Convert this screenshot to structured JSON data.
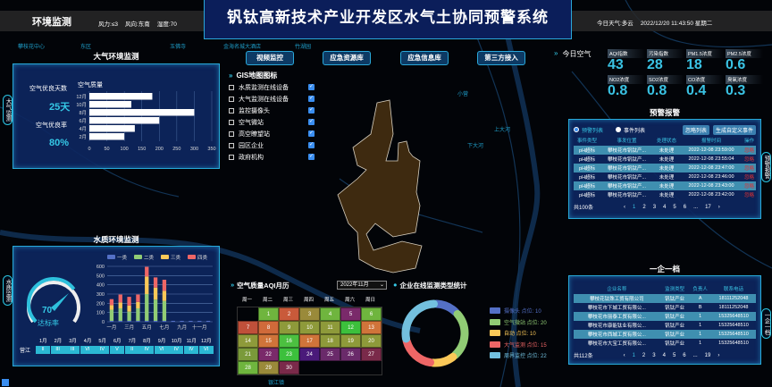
{
  "header": {
    "section": "环境监测",
    "wind_force": "风力:≤3",
    "wind_dir": "风向:东南",
    "humidity": "湿度:70",
    "title": "钒钛高新技术产业开发区水气土协同预警系统",
    "weather": "今日天气:多云",
    "datetime": "2022/12/20 11:43:50 星期二"
  },
  "nav": [
    "视频监控",
    "应急资源库",
    "应急信息库",
    "第三方接入"
  ],
  "gis": {
    "title": "GIS地图图标",
    "items": [
      "水质监测在线设备",
      "大气监测在线设备",
      "监控摄像头",
      "空气微站",
      "高空瞭望站",
      "园区企业",
      "政府机构"
    ]
  },
  "air_panel": {
    "title": "大气环境监测",
    "tab": "大气监测",
    "good_days_label": "空气优良天数",
    "good_days": "25天",
    "good_rate_label": "空气优良率",
    "good_rate": "80%"
  },
  "water_panel": {
    "title": "水质环境监测",
    "tab": "水质监测",
    "gauge_value": "70",
    "gauge_label": "达标率",
    "gauge_percent": 70,
    "river": "营江",
    "months": [
      "1月",
      "2月",
      "3月",
      "4月",
      "5月",
      "6月",
      "7月",
      "8月",
      "9月",
      "10月",
      "11月",
      "12月"
    ],
    "grades": [
      "II",
      "III",
      "III",
      "VI",
      "IV",
      "V",
      "II",
      "IV",
      "VI",
      "IV",
      "IV",
      "VI"
    ]
  },
  "today_air": {
    "title": "今日空气",
    "items": [
      {
        "label": "AQI指数",
        "value": "43"
      },
      {
        "label": "污染指数",
        "value": "28"
      },
      {
        "label": "PM1.5浓度",
        "value": "18"
      },
      {
        "label": "PM2.5浓度",
        "value": "0.6"
      },
      {
        "label": "NO2浓度",
        "value": "0.8"
      },
      {
        "label": "SO2浓度",
        "value": "0.8"
      },
      {
        "label": "CO浓度",
        "value": "0.4"
      },
      {
        "label": "臭氧浓度",
        "value": "0.3"
      }
    ]
  },
  "alerts": {
    "title": "预警报警",
    "tab": "预警报警",
    "radio1": "预警列表",
    "radio2": "事件列表",
    "btn_ignore": "忽略列表",
    "btn_create": "生成自定义事件",
    "columns": [
      "事件类型",
      "事发位置",
      "处理状态",
      "报警时间",
      "操作"
    ],
    "rows": [
      [
        "pH超标",
        "攀枝花市钒钛产...",
        "未处理",
        "2022-12-08 23:59:00",
        "忽略"
      ],
      [
        "pH超标",
        "攀枝花市钒钛产...",
        "未处理",
        "2022-12-08 23:55:04",
        "忽略"
      ],
      [
        "pH超标",
        "攀枝花市钒钛产...",
        "未处理",
        "2022-12-08 23:47:00",
        "忽略"
      ],
      [
        "pH超标",
        "攀枝花市钒钛产...",
        "未处理",
        "2022-12-08 23:46:00",
        "忽略"
      ],
      [
        "pH超标",
        "攀枝花市钒钛产...",
        "未处理",
        "2022-12-08 23:43:00",
        "忽略"
      ],
      [
        "pH超标",
        "攀枝花市钒钛产...",
        "未处理",
        "2022-12-08 23:42:00",
        "忽略"
      ]
    ],
    "total": "共100条",
    "pages": [
      "1",
      "2",
      "3",
      "4",
      "5",
      "6",
      "...",
      "17"
    ]
  },
  "enterprise": {
    "title": "一企一档",
    "tab": "一企一档",
    "columns": [
      "企业名称",
      "监测类型",
      "负责人",
      "联系电话"
    ],
    "rows": [
      [
        "攀枝花钛殊工贸有限公司",
        "钒钛产业",
        "A",
        "18111252048"
      ],
      [
        "攀枝花市下城工贸有限公...",
        "钒钛产业",
        "B",
        "18111252048"
      ],
      [
        "攀枝花市丽泰工贸有限公...",
        "钒钛产业",
        "1",
        "15325648510"
      ],
      [
        "攀枝花市康能钛业有限公...",
        "钒钛产业",
        "1",
        "15325648510"
      ],
      [
        "攀枝花市西城工贸有限公...",
        "钒钛产业",
        "1",
        "15325648510"
      ],
      [
        "攀枝花市大宝工贸有限公...",
        "钒钛产业",
        "1",
        "15325648510"
      ]
    ],
    "total": "共112条",
    "pages": [
      "1",
      "2",
      "3",
      "4",
      "5",
      "6",
      "...",
      "19"
    ]
  },
  "calendar": {
    "title": "空气质量AQI月历",
    "month_select": "2022年11月",
    "weekdays": [
      "周一",
      "周二",
      "周三",
      "周四",
      "周五",
      "周六",
      "周日"
    ],
    "first_weekday": 1,
    "day_colors": [
      "#6fb53e",
      "#c95a3a",
      "#9a8a3a",
      "#6fb53e",
      "#7a2a6a",
      "#6fb53e",
      "#c0503a",
      "#d06a3a",
      "#8e9a3a",
      "#8e9a3a",
      "#8e9a3a",
      "#3cc03c",
      "#d0743a",
      "#8e9a3a",
      "#d0743a",
      "#4cc040",
      "#d0743a",
      "#8e9a3a",
      "#8e9a3a",
      "#8e9a3a",
      "#7a9a3a",
      "#7a2a6a",
      "#3cc03c",
      "#4a1a7a",
      "#6a2a6a",
      "#6a2a6a",
      "#7a2a4a",
      "#6fb53e",
      "#9a8a3a",
      "#7a2a4a"
    ]
  },
  "chart_data": [
    {
      "type": "bar",
      "orientation": "horizontal",
      "title": "空气质量",
      "categories": [
        "12月",
        "10月",
        "8月",
        "6月",
        "4月",
        "2月"
      ],
      "values": [
        180,
        120,
        300,
        200,
        130,
        100
      ],
      "xlim": [
        0,
        350
      ],
      "xticks": [
        0,
        50,
        100,
        150,
        200,
        250,
        300,
        350
      ]
    },
    {
      "type": "bar",
      "stacked": true,
      "categories": [
        "1月",
        "2月",
        "3月",
        "4月",
        "5月",
        "6月",
        "7月",
        "8月",
        "9月",
        "10月",
        "11月",
        "12月"
      ],
      "xtick_labels": [
        "一月",
        "三月",
        "五月",
        "七月",
        "九月",
        "十一月"
      ],
      "ylim": [
        0,
        600
      ],
      "yticks": [
        0,
        100,
        200,
        300,
        400,
        500,
        600
      ],
      "series": [
        {
          "name": "一类",
          "color": "#5470c6",
          "values": [
            10,
            10,
            10,
            10,
            10,
            10,
            10,
            10,
            10,
            10,
            10,
            10
          ]
        },
        {
          "name": "二类",
          "color": "#91cc75",
          "values": [
            120,
            135,
            100,
            135,
            290,
            230,
            215,
            0,
            0,
            0,
            0,
            0
          ]
        },
        {
          "name": "三类",
          "color": "#fac858",
          "values": [
            50,
            65,
            65,
            70,
            190,
            130,
            110,
            0,
            0,
            0,
            0,
            0
          ]
        },
        {
          "name": "四类",
          "color": "#ee6666",
          "values": [
            65,
            85,
            95,
            80,
            105,
            110,
            120,
            0,
            0,
            0,
            0,
            0
          ]
        }
      ]
    },
    {
      "type": "pie",
      "donut": true,
      "title": "企业在线监测类型统计",
      "categories": [
        "摄像头 点位: 10",
        "空气微站 点位: 20",
        "自动 点位: 10",
        "大气监测 点位: 15",
        "周界监控 点位: 22"
      ],
      "values": [
        10,
        20,
        10,
        15,
        22
      ],
      "colors": [
        "#5470c6",
        "#91cc75",
        "#fac858",
        "#ee6666",
        "#73c0de"
      ]
    }
  ],
  "map_labels": [
    "攀枝花中心",
    "东区",
    "金海名城大酒店",
    "玉佛寺",
    "竹湖园",
    "小营",
    "上大河",
    "下大河",
    "银江镇"
  ]
}
